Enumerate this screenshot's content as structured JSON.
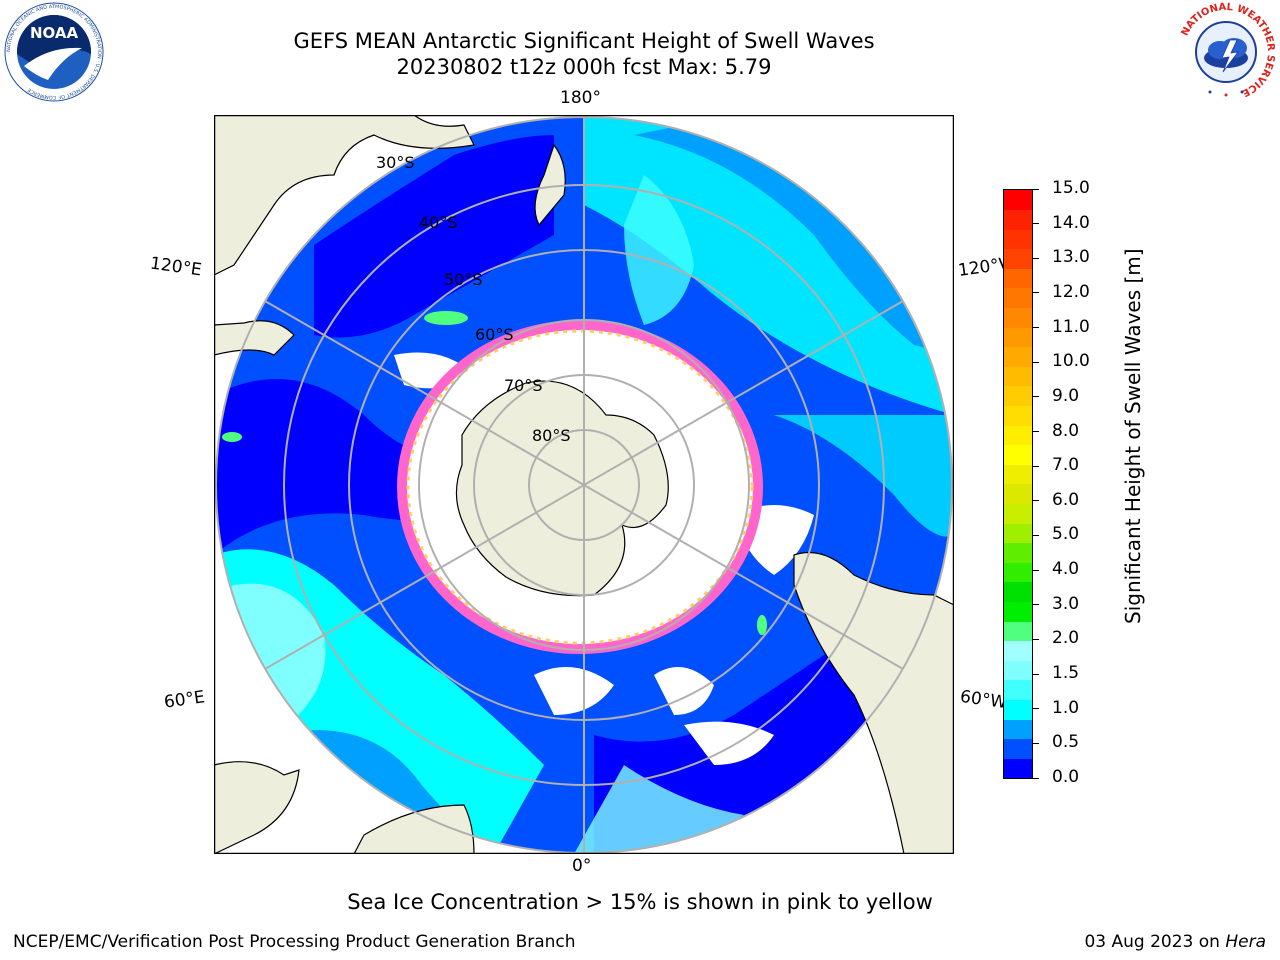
{
  "header": {
    "title_line1": "GEFS MEAN Antarctic Significant Height of Swell Waves",
    "title_line2": "20230802 t12z 000h fcst   Max: 5.79"
  },
  "logos": {
    "noaa_text": "NOAA",
    "noaa_ring": "NATIONAL OCEANIC AND ATMOSPHERIC ADMINISTRATION · U.S. DEPARTMENT OF COMMERCE",
    "nws_ring": "NATIONAL WEATHER SERVICE"
  },
  "map": {
    "longitude_labels": {
      "top": "180°",
      "bottom": "0°",
      "left_upper": "120°E",
      "left_lower": "60°E",
      "right_upper": "120°W",
      "right_lower": "60°W"
    },
    "latitude_labels": [
      "30°S",
      "40°S",
      "50°S",
      "60°S",
      "70°S",
      "80°S"
    ],
    "colors": {
      "land": "#eeeedd",
      "ice": "#ffffff",
      "ice_edge": [
        "#ff66cc",
        "#ffcc66"
      ],
      "grid": "#b0b0b0"
    }
  },
  "chart_data": {
    "type": "heatmap",
    "title": "GEFS MEAN Antarctic Significant Height of Swell Waves",
    "colorbar_label": "Significant Height of Swell Waves [m]",
    "colorbar_ticks": [
      "15.0",
      "14.0",
      "13.0",
      "12.0",
      "11.0",
      "10.0",
      "9.0",
      "8.0",
      "7.0",
      "6.0",
      "5.0",
      "4.0",
      "3.0",
      "2.0",
      "1.5",
      "1.0",
      "0.5",
      "0.0"
    ],
    "levels": [
      0.0,
      0.5,
      1.0,
      1.5,
      2.0,
      2.5,
      3.0,
      3.5,
      4.0,
      4.5,
      5.0,
      5.5,
      6.0,
      6.5,
      7.0,
      7.5,
      8.0,
      8.5,
      9.0,
      9.5,
      10.0,
      10.5,
      11.0,
      11.5,
      12.0,
      12.5,
      13.0,
      13.5,
      14.0,
      14.5,
      15.0
    ],
    "colors": [
      "#0000ff",
      "#0050ff",
      "#00a0ff",
      "#00ffff",
      "#40ffff",
      "#80ffff",
      "#a0ffff",
      "#50ff80",
      "#00ee00",
      "#00e000",
      "#30ee00",
      "#60ee00",
      "#a0ee00",
      "#c8ee00",
      "#dde800",
      "#eeee00",
      "#ffff00",
      "#ffee00",
      "#ffdd00",
      "#ffcc00",
      "#ffbb00",
      "#ffaa00",
      "#ff9900",
      "#ff8800",
      "#ff7700",
      "#ff6600",
      "#ff4400",
      "#ff3300",
      "#ff2200",
      "#ff0000"
    ],
    "max_value": 5.79,
    "units": "m"
  },
  "footer": {
    "note": "Sea Ice Concentration > 15% is shown in pink to yellow",
    "credit": "NCEP/EMC/Verification Post Processing Product Generation Branch",
    "date_prefix": "03 Aug 2023 on ",
    "date_system": "Hera"
  }
}
